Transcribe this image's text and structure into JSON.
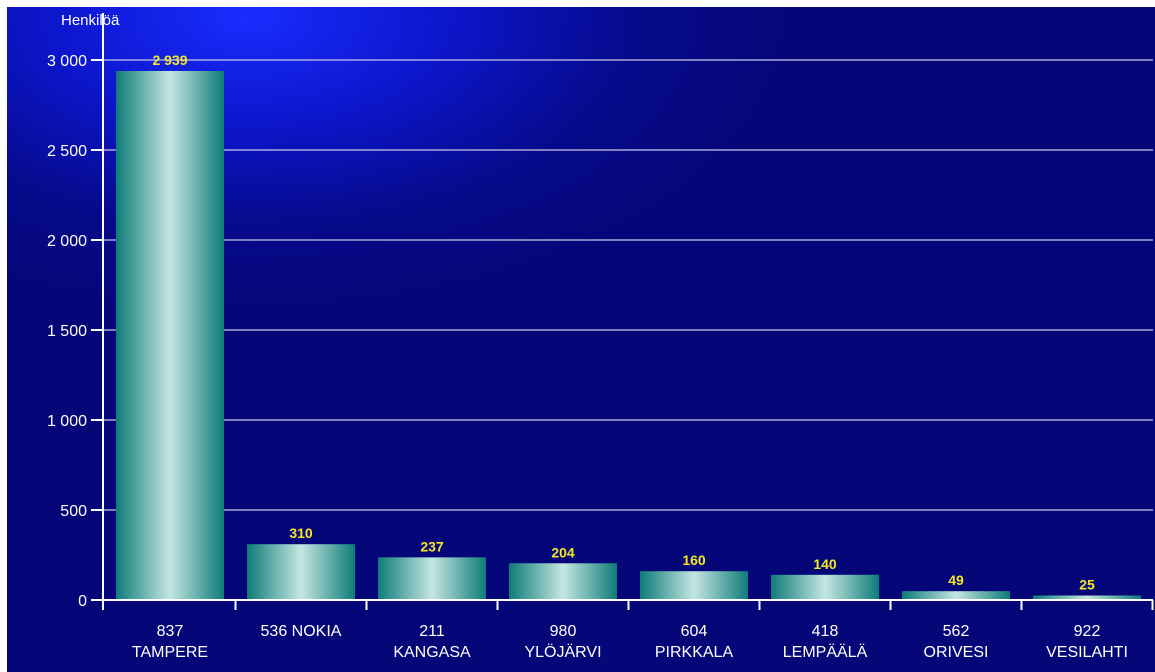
{
  "chart_data": {
    "type": "bar",
    "title": "",
    "xlabel": "",
    "ylabel": "Henkilöä",
    "ylim": [
      0,
      3000
    ],
    "yticks": [
      0,
      500,
      1000,
      1500,
      2000,
      2500,
      3000
    ],
    "ytick_labels": [
      "0",
      "500",
      "1 000",
      "1 500",
      "2 000",
      "2 500",
      "3 000"
    ],
    "categories": [
      [
        "837",
        "TAMPERE"
      ],
      [
        "536 NOKIA"
      ],
      [
        "211",
        "KANGASA"
      ],
      [
        "980",
        "YLÖJÄRVI"
      ],
      [
        "604",
        "PIRKKALA"
      ],
      [
        "418",
        "LEMPÄÄLÄ"
      ],
      [
        "562",
        "ORIVESI"
      ],
      [
        "922",
        "VESILAHTI"
      ]
    ],
    "values": [
      2939,
      310,
      237,
      204,
      160,
      140,
      49,
      25
    ],
    "value_labels": [
      "2 939",
      "310",
      "237",
      "204",
      "160",
      "140",
      "49",
      "25"
    ],
    "grid": true,
    "legend": "none",
    "colors": {
      "background": "#0a12b0",
      "bar_edge": "#0e7c78",
      "bar_center": "#c4e6e2",
      "value_label": "#f5e62a",
      "text": "#ffffff",
      "grid": "#c8c8e8"
    }
  }
}
